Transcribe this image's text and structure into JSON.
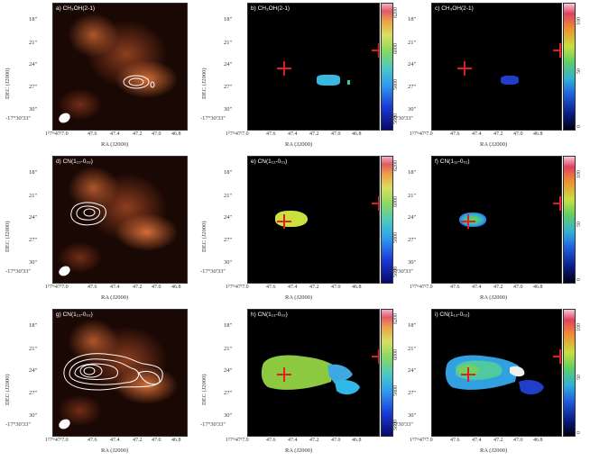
{
  "panels": {
    "a": {
      "label": "a) CH₃OH(2-1)",
      "ylabel": "DEC (J2000)",
      "xlabel": "RA (J2000)"
    },
    "b": {
      "label": "b) CH₃OH(2-1)",
      "ylabel": "DEC (J2000)",
      "xlabel": "RA (J2000)"
    },
    "c": {
      "label": "c) CH₃OH(2-1)",
      "xlabel": "RA (J2000)"
    },
    "d": {
      "label": "d) CN(1₁₀-0₀₉)",
      "ylabel": "DEC (J2000)",
      "xlabel": "RA (J2000)"
    },
    "e": {
      "label": "e) CN(1₁₂-0₀₁)",
      "ylabel": "DEC (J2000)",
      "xlabel": "RA (J2000)"
    },
    "f": {
      "label": "f) CN(1₁₂-0₀₁)",
      "xlabel": "RA (J2000)"
    },
    "g": {
      "label": "g) CN(1₁₃-0₀₂)",
      "ylabel": "DEC (J2000)",
      "xlabel": "RA (J2000)"
    },
    "h": {
      "label": "h) CN(1₁₃-0₀₂)",
      "ylabel": "DEC (J2000)",
      "xlabel": "RA (J2000)"
    },
    "i": {
      "label": "i) CN(1₁₃-0₀₂)",
      "xlabel": "RA (J2000)"
    }
  },
  "dec_ticks": [
    "18\"",
    "21\"",
    "24\"",
    "27\"",
    "30\"",
    "-17°30'33\""
  ],
  "ra_ticks": [
    "1ʰ7ᵐ47ˢ7.0",
    "47.6",
    "47.4",
    "47.2",
    "47.0",
    "46.8",
    "46.6"
  ],
  "colorbars": {
    "velocity": {
      "ticks": [
        "5600",
        "5800",
        "6000",
        "6200"
      ]
    },
    "dispersion": {
      "ticks": [
        "0",
        "50",
        "100"
      ]
    }
  },
  "colors": {
    "cross": "#e02020",
    "background": "#000000",
    "contour": "#ffffff"
  }
}
